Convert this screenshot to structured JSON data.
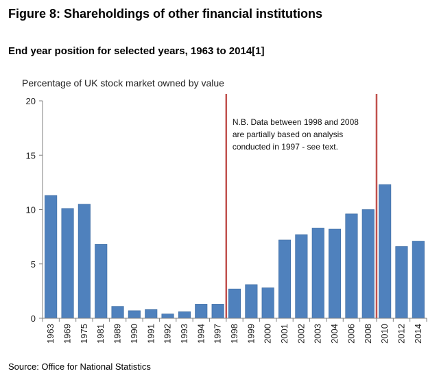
{
  "header": {
    "title": "Figure 8: Shareholdings of other financial institutions",
    "subtitle": "End year position for selected years, 1963 to 2014[1]"
  },
  "footer": {
    "source": "Source: Office for National Statistics"
  },
  "chart_data": {
    "type": "bar",
    "title": "",
    "xlabel": "",
    "ylabel": "Percentage of UK stock market owned by value",
    "ylim": [
      0,
      20
    ],
    "yticks": [
      0,
      5,
      10,
      15,
      20
    ],
    "grid": false,
    "legend": "none",
    "bar_color": "#4f81bd",
    "line_color": "#c0504d",
    "categories": [
      "1963",
      "1969",
      "1975",
      "1981",
      "1989",
      "1990",
      "1991",
      "1992",
      "1993",
      "1994",
      "1997",
      "1998",
      "1999",
      "2000",
      "2001",
      "2002",
      "2003",
      "2004",
      "2006",
      "2008",
      "2010",
      "2012",
      "2014"
    ],
    "values": [
      11.3,
      10.1,
      10.5,
      6.8,
      1.1,
      0.7,
      0.8,
      0.4,
      0.6,
      1.3,
      1.3,
      2.7,
      3.1,
      2.8,
      7.2,
      7.7,
      8.3,
      8.2,
      9.6,
      10.0,
      12.3,
      6.6,
      7.1
    ],
    "vertical_lines": [
      {
        "between": [
          "1997",
          "1998"
        ]
      },
      {
        "between": [
          "2008",
          "2010"
        ]
      }
    ],
    "annotation": {
      "lines": [
        "N.B. Data between 1998 and 2008",
        "are partially based on analysis",
        "conducted in 1997 - see text."
      ]
    }
  }
}
